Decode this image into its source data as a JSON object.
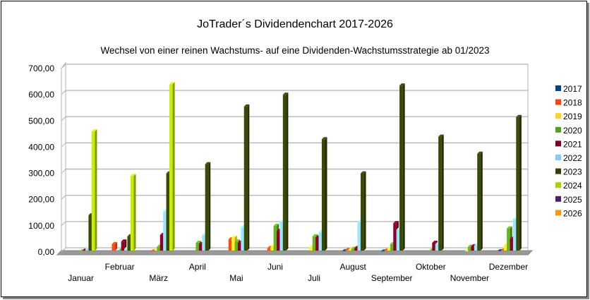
{
  "chart_data": {
    "type": "bar",
    "title": "JoTrader´s Dividendenchart 2017-2026",
    "subtitle": "Wechsel von einer reinen Wachstums- auf eine Dividenden-Wachstumsstrategie ab 01/2023",
    "xlabel": "",
    "ylabel": "",
    "ylim": [
      0,
      700
    ],
    "yticks": [
      "0,00",
      "100,00",
      "200,00",
      "300,00",
      "400,00",
      "500,00",
      "600,00",
      "700,00"
    ],
    "grid": true,
    "legend_position": "right",
    "categories": [
      "Januar",
      "Februar",
      "März",
      "April",
      "Mai",
      "Juni",
      "Juli",
      "August",
      "September",
      "Oktober",
      "November",
      "Dezember"
    ],
    "series": [
      {
        "name": "2017",
        "color": "#004586",
        "values": [
          0,
          0,
          0,
          0,
          0,
          0,
          0,
          3,
          2,
          0,
          0,
          3
        ]
      },
      {
        "name": "2018",
        "color": "#ff420e",
        "values": [
          0,
          30,
          2,
          0,
          48,
          15,
          0,
          7,
          5,
          0,
          0,
          5
        ]
      },
      {
        "name": "2019",
        "color": "#ffd320",
        "values": [
          0,
          0,
          5,
          0,
          55,
          20,
          18,
          8,
          10,
          0,
          3,
          25
        ]
      },
      {
        "name": "2020",
        "color": "#579d1c",
        "values": [
          2,
          5,
          20,
          35,
          40,
          100,
          60,
          12,
          30,
          5,
          20,
          90
        ]
      },
      {
        "name": "2021",
        "color": "#7e0021",
        "values": [
          5,
          40,
          65,
          30,
          35,
          80,
          55,
          15,
          110,
          35,
          22,
          50
        ]
      },
      {
        "name": "2022",
        "color": "#83caff",
        "values": [
          12,
          12,
          155,
          65,
          95,
          115,
          75,
          115,
          85,
          30,
          25,
          125
        ]
      },
      {
        "name": "2023",
        "color": "#314004",
        "values": [
          140,
          60,
          300,
          335,
          555,
          600,
          430,
          300,
          635,
          440,
          375,
          515
        ]
      },
      {
        "name": "2024",
        "color": "#aecf00",
        "values": [
          460,
          290,
          640,
          0,
          0,
          0,
          0,
          0,
          0,
          0,
          0,
          0
        ]
      },
      {
        "name": "2025",
        "color": "#4b1f6f",
        "values": [
          0,
          0,
          0,
          0,
          0,
          0,
          0,
          0,
          0,
          0,
          0,
          0
        ]
      },
      {
        "name": "2026",
        "color": "#ff950e",
        "values": [
          0,
          0,
          0,
          0,
          0,
          0,
          0,
          0,
          0,
          0,
          0,
          0
        ]
      }
    ]
  }
}
